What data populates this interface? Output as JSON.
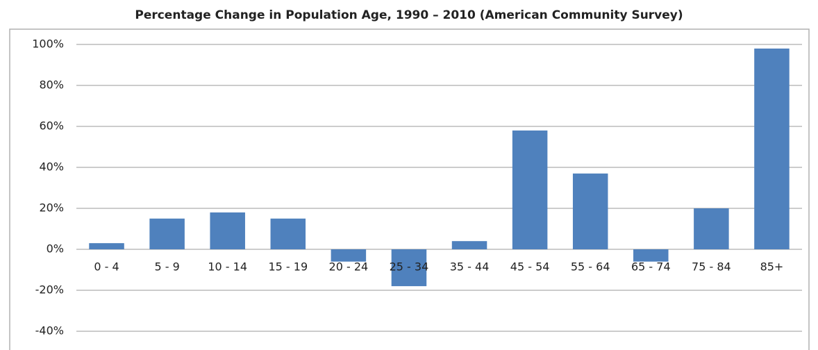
{
  "chart_data": {
    "type": "bar",
    "title": "Percentage Change in Population Age, 1990 – 2010 (American Community Survey)",
    "categories": [
      "0 - 4",
      "5 - 9",
      "10 - 14",
      "15 - 19",
      "20 - 24",
      "25 - 34",
      "35 - 44",
      "45 - 54",
      "55 - 64",
      "65 - 74",
      "75 - 84",
      "85+"
    ],
    "values": [
      3,
      15,
      18,
      15,
      -6,
      -18,
      4,
      58,
      37,
      -6,
      20,
      98
    ],
    "color": "#4f81bd",
    "ylim": [
      -40,
      100
    ],
    "yticks": [
      {
        "value": -40,
        "label": "-40%"
      },
      {
        "value": -20,
        "label": "-20%"
      },
      {
        "value": 0,
        "label": "0%"
      },
      {
        "value": 20,
        "label": "20%"
      },
      {
        "value": 40,
        "label": "40%"
      },
      {
        "value": 60,
        "label": "60%"
      },
      {
        "value": 80,
        "label": "80%"
      },
      {
        "value": 100,
        "label": "100%"
      }
    ],
    "grid": true
  }
}
